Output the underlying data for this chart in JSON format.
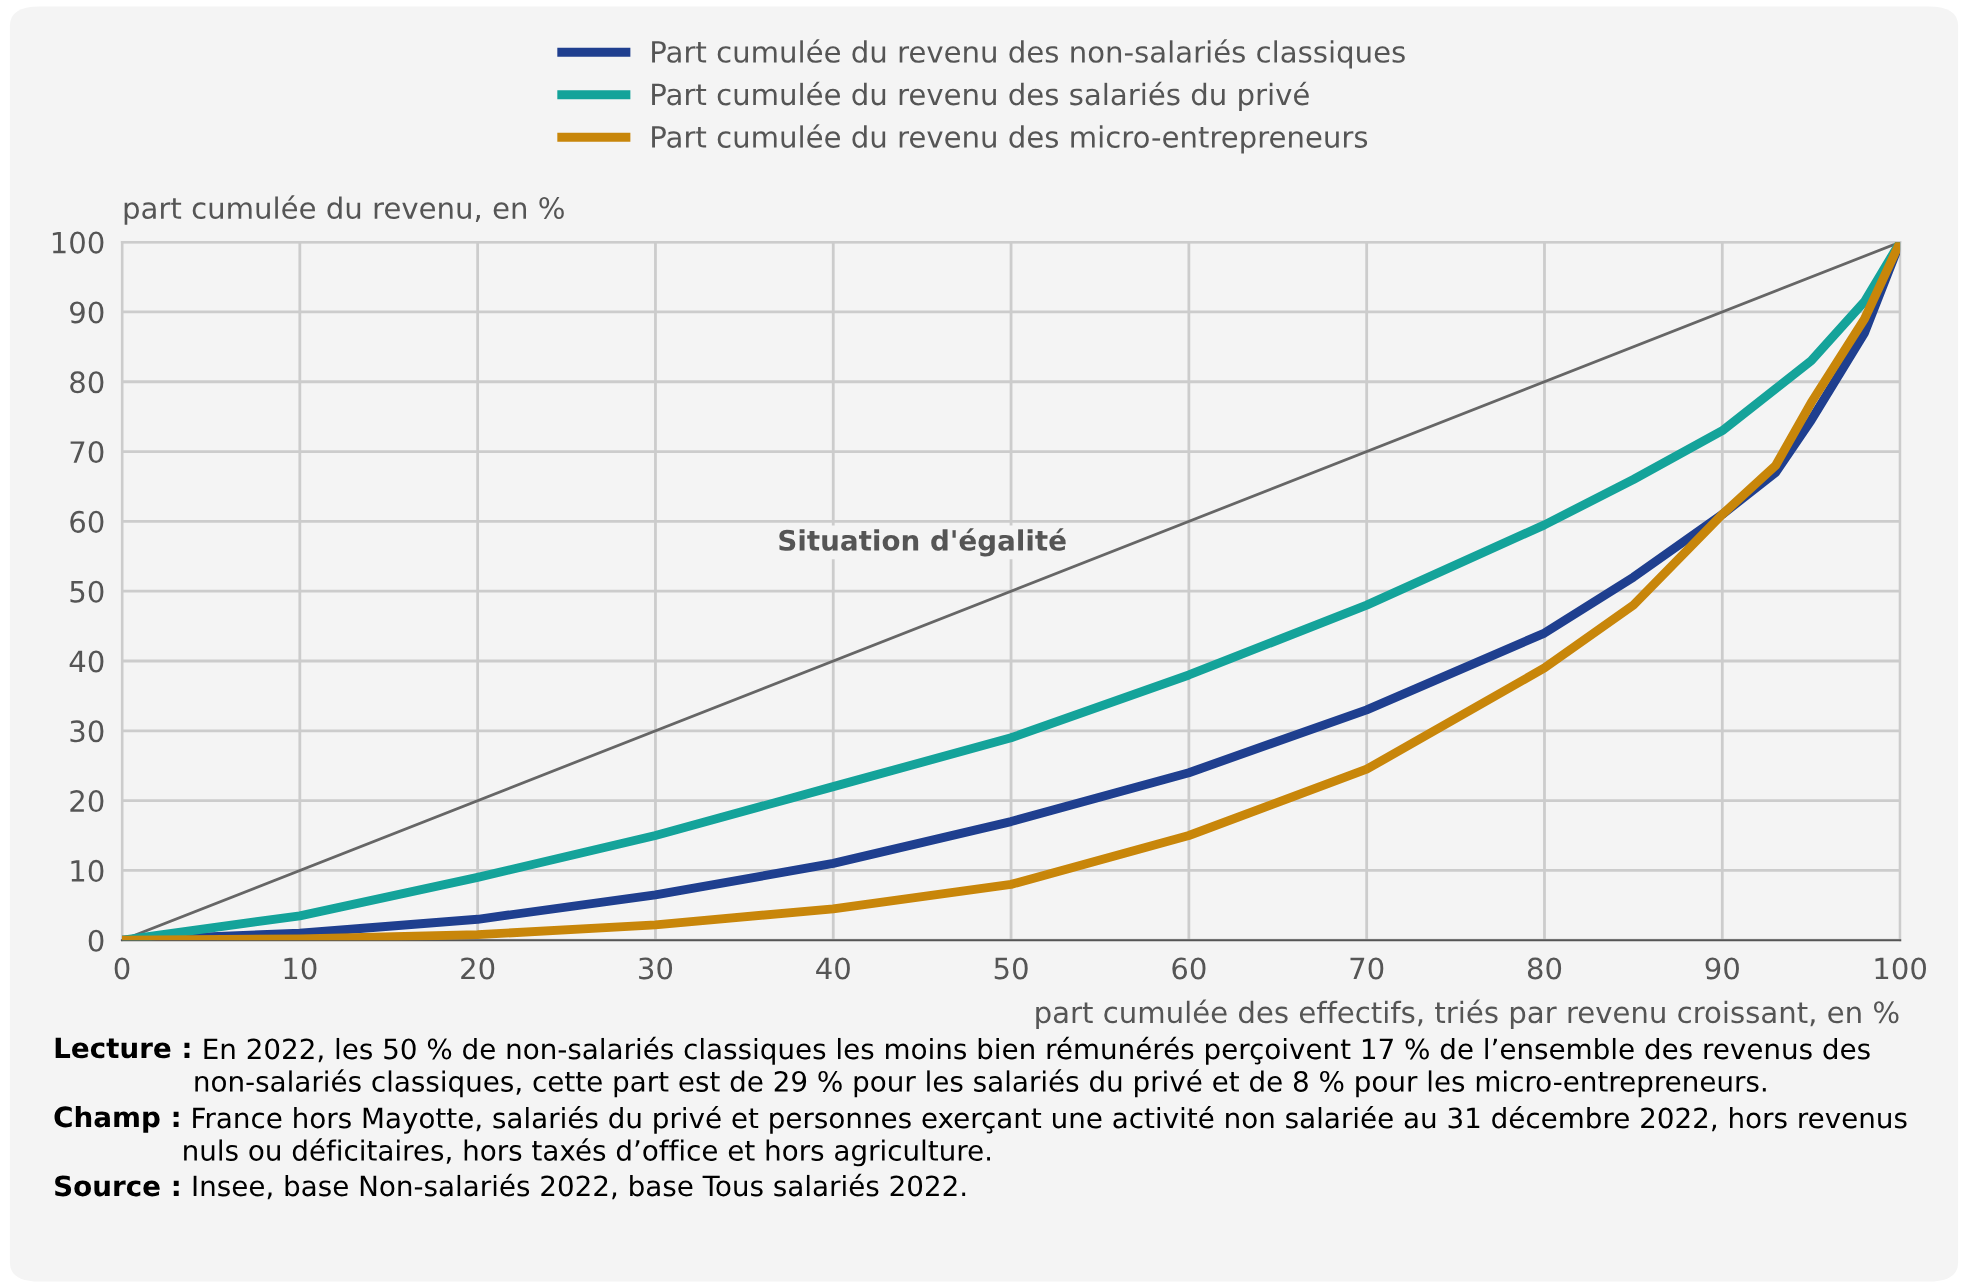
{
  "chart_data": {
    "type": "line",
    "xlabel": "part cumulée des effectifs, triés par revenu croissant, en %",
    "ylabel": "part cumulée du revenu, en %",
    "x": [
      0,
      10,
      20,
      30,
      40,
      50,
      60,
      70,
      80,
      85,
      90,
      93,
      95,
      98,
      100
    ],
    "series": [
      {
        "name": "Part cumulée du revenu des non-salariés classiques",
        "color": "#1f3f8f",
        "values": [
          0,
          1,
          3,
          6.5,
          11,
          17,
          24,
          33,
          44,
          52,
          61,
          67,
          74.5,
          87,
          100
        ]
      },
      {
        "name": "Part cumulée du revenu des salariés du privé",
        "color": "#14a39a",
        "values": [
          0,
          3.5,
          9,
          15,
          22,
          29,
          38,
          48,
          59.5,
          66,
          73,
          79,
          83,
          91.5,
          100
        ]
      },
      {
        "name": "Part cumulée du revenu des micro-entrepreneurs",
        "color": "#c8860a",
        "values": [
          0,
          0.2,
          0.8,
          2.2,
          4.5,
          8,
          15,
          24.5,
          39,
          48,
          61,
          68,
          77,
          89,
          100
        ]
      },
      {
        "name": "Situation d'égalité",
        "color": "#666666",
        "x": [
          0,
          100
        ],
        "values": [
          0,
          100
        ]
      }
    ],
    "xlim": [
      0,
      100
    ],
    "ylim": [
      0,
      100
    ],
    "xticks": [
      0,
      10,
      20,
      30,
      40,
      50,
      60,
      70,
      80,
      90,
      100
    ],
    "yticks": [
      0,
      10,
      20,
      30,
      40,
      50,
      60,
      70,
      80,
      90,
      100
    ],
    "grid": true,
    "legend": "top",
    "annotations": [
      "Lecture : En 2022, les 50 % de non-salariés classiques les moins bien rémunérés perçoivent 17 % de l’ensemble des revenus des non-salariés classiques, cette part est de 29 % pour les salariés du privé et de 8 % pour les micro-entrepreneurs.",
      "Champ : France hors Mayotte, salariés du privé et personnes exerçant une activité non salariée au 31 décembre 2022, hors revenus nuls ou déficitaires, hors taxés d’office et hors agriculture.",
      "Source : Insee, base Non-salariés 2022, base Tous salariés 2022."
    ]
  }
}
